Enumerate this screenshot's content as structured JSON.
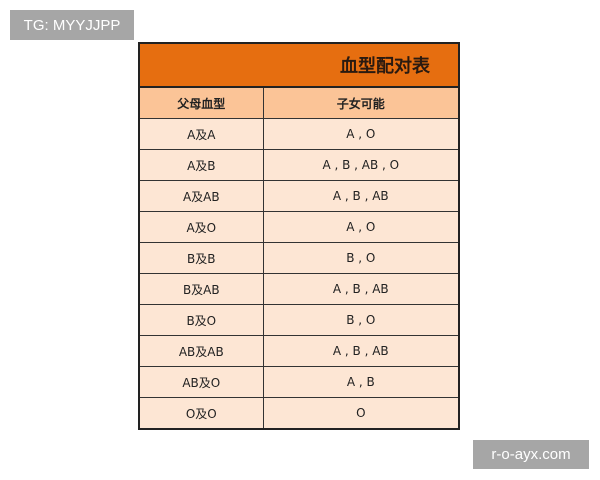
{
  "watermarks": {
    "top_left": "TG: MYYJJPP",
    "bottom_right": "r-o-ayx.com"
  },
  "table": {
    "title": "血型配对表",
    "headers": [
      "父母血型",
      "子女可能"
    ],
    "rows": [
      [
        "A及A",
        "A , O"
      ],
      [
        "A及B",
        "A , B , AB , O"
      ],
      [
        "A及AB",
        "A , B , AB"
      ],
      [
        "A及O",
        "A , O"
      ],
      [
        "B及B",
        "B , O"
      ],
      [
        "B及AB",
        "A , B , AB"
      ],
      [
        "B及O",
        "B , O"
      ],
      [
        "AB及AB",
        "A , B , AB"
      ],
      [
        "AB及O",
        "A , B"
      ],
      [
        "O及O",
        "O"
      ]
    ]
  },
  "colors": {
    "title_bg": "#e66e10",
    "header_bg": "#fbc497",
    "row_bg": "#fde6d4"
  }
}
